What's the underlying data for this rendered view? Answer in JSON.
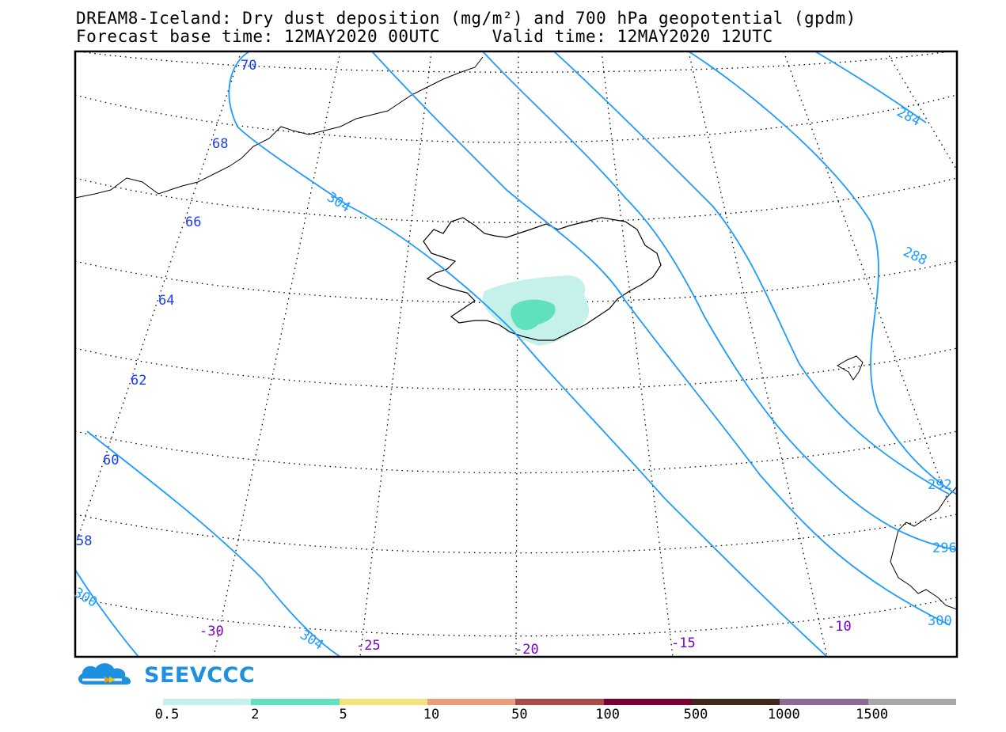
{
  "header": {
    "title": "DREAM8-Iceland: Dry dust deposition (mg/m²) and 700 hPa geopotential (gpdm)",
    "subtitle_base": "Forecast base time: 12MAY2020 00UTC",
    "subtitle_valid": "Valid time: 12MAY2020 12UTC"
  },
  "map": {
    "region": "Iceland",
    "latitude_labels": [
      "70",
      "68",
      "66",
      "64",
      "62",
      "60",
      "58"
    ],
    "longitude_labels": [
      "-30",
      "-25",
      "-20",
      "-15",
      "-10"
    ],
    "contour_labels": [
      "304",
      "304",
      "284",
      "288",
      "292",
      "296",
      "300",
      "300"
    ],
    "colors": {
      "graticule": "#000000",
      "lat_label": "#1a3cff",
      "lon_label": "#7a00cc",
      "contour": "#1e9bff",
      "coast": "#000000",
      "dust_light": "#c5f1ea",
      "dust_medium": "#5fe0bf"
    }
  },
  "logo": {
    "text": "SEEVCCC",
    "icon": "cloud-icon"
  },
  "colorbar": {
    "labels": [
      "0.5",
      "2",
      "5",
      "10",
      "50",
      "100",
      "500",
      "1000",
      "1500"
    ],
    "colors": [
      "#c5f1ea",
      "#5fe0bf",
      "#f6e27b",
      "#ec9d7b",
      "#a94c48",
      "#7a0032",
      "#3d2a1a",
      "#8b6a9a",
      "#a8a8a8"
    ]
  }
}
